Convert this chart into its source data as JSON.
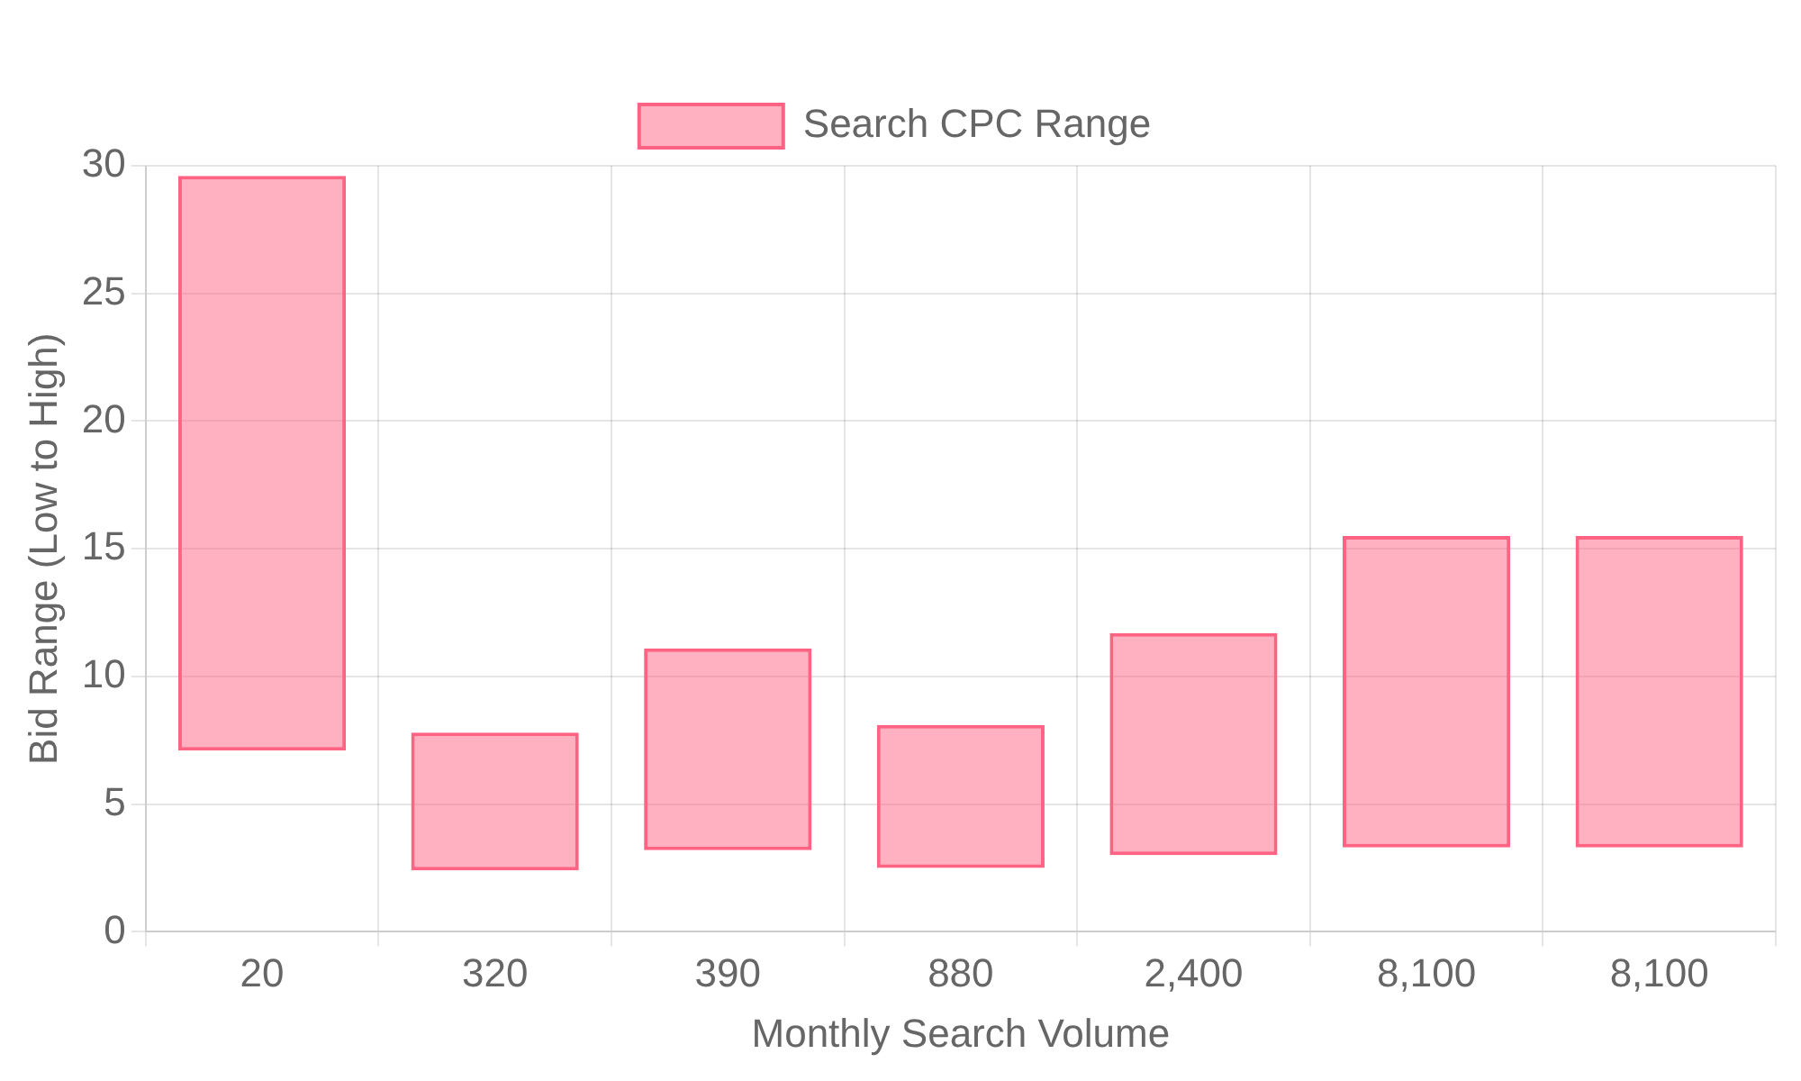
{
  "chart_data": {
    "type": "bar",
    "xlabel": "Monthly Search Volume",
    "ylabel": "Bid Range (Low to High)",
    "categories": [
      "20",
      "320",
      "390",
      "880",
      "2,400",
      "8,100",
      "8,100"
    ],
    "series": [
      {
        "name": "Search CPC Range",
        "color": "#ff6384",
        "values": [
          22.5,
          5.4,
          7.9,
          5.6,
          8.7,
          12.2,
          12.2
        ],
        "base": [
          7.1,
          2.4,
          3.2,
          2.5,
          3.0,
          3.3,
          3.3
        ]
      }
    ],
    "ylim": [
      0,
      30
    ],
    "yticks": [
      0,
      5,
      10,
      15,
      20,
      25,
      30
    ],
    "grid": true,
    "legend": "top"
  }
}
